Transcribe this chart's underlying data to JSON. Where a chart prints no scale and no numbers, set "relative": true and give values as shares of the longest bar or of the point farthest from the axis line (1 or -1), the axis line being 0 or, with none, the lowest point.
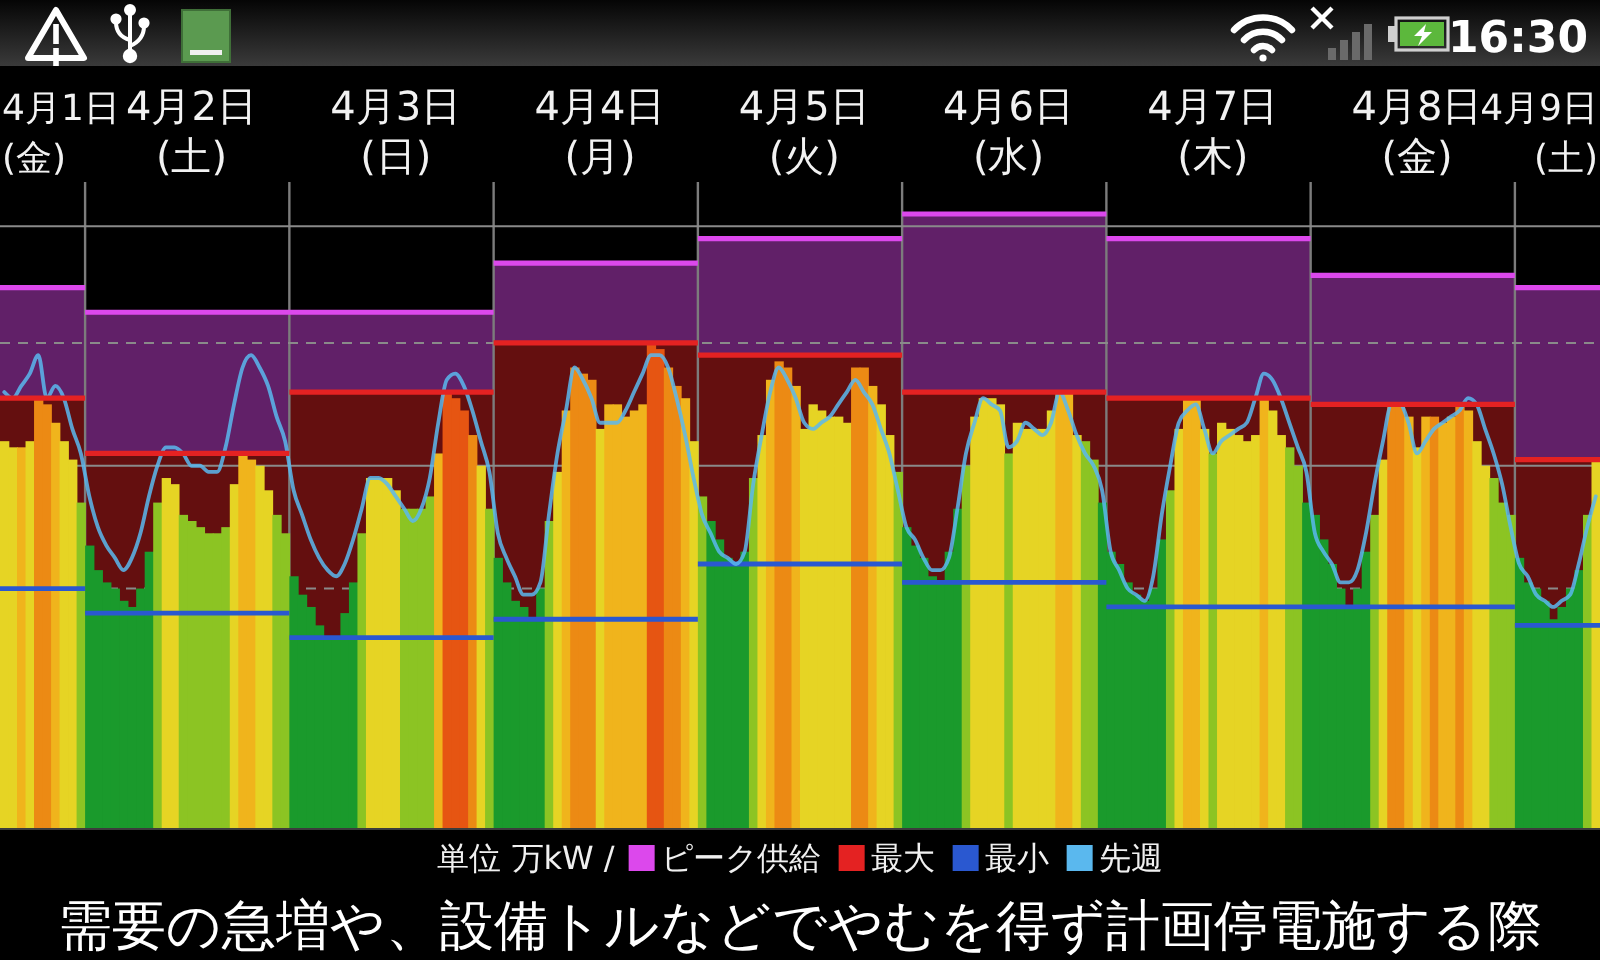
{
  "chart_data": {
    "type": "bar",
    "relative": true,
    "categories": [
      null,
      null,
      null,
      null,
      null,
      null,
      null,
      null,
      null,
      null,
      null,
      null,
      null,
      null,
      null,
      null,
      null,
      null,
      null,
      null,
      null,
      null,
      "4月2日\n(土)",
      null,
      null,
      null,
      null,
      null,
      null,
      null,
      null,
      null,
      null,
      null,
      null,
      null,
      null,
      null,
      null,
      null,
      null,
      null,
      null,
      null,
      null,
      null,
      "4月3日\n(日)",
      null,
      null,
      null,
      null,
      null,
      null,
      null,
      null,
      null,
      null,
      null,
      null,
      null,
      null,
      null,
      null,
      null,
      null,
      null,
      null,
      null,
      null,
      null,
      "4月4日\n(月)",
      null,
      null,
      null,
      null,
      null,
      null,
      null,
      null,
      null,
      null,
      null,
      null,
      null,
      null,
      null,
      null,
      null,
      null,
      null,
      null,
      null,
      null,
      null,
      "4月5日\n(火)",
      null,
      null,
      null,
      null,
      null,
      null,
      null,
      null,
      null,
      null,
      null,
      null,
      null,
      null,
      null,
      null,
      null,
      null,
      null,
      null,
      null,
      null,
      null,
      "4月6日\n(水)",
      null,
      null,
      null,
      null,
      null,
      null,
      null,
      null,
      null,
      null,
      null,
      null,
      null,
      null,
      null,
      null,
      null,
      null,
      null,
      null,
      null,
      null,
      null,
      "4月7日\n(木)",
      null,
      null,
      null,
      null,
      null,
      null,
      null,
      null,
      null,
      null,
      null,
      null,
      null,
      null,
      null,
      null,
      null,
      null,
      null,
      null,
      null,
      null,
      null,
      "4月8日\n(金)",
      null,
      null,
      null,
      null,
      null,
      null,
      null,
      null,
      null,
      null,
      null,
      null,
      null,
      null,
      null,
      null,
      null,
      null,
      null,
      null,
      null
    ],
    "legend": "bottom",
    "ref_lines": [
      {
        "axis": "y",
        "value": 0.39,
        "color": "#8a8a8a",
        "line_style": "dashed"
      },
      {
        "axis": "y",
        "value": 0.59,
        "color": "#8a8a8a"
      },
      {
        "axis": "y",
        "value": 0.79,
        "color": "#8a8a8a",
        "line_style": "dashed"
      },
      {
        "axis": "y",
        "value": 0.98,
        "color": "#8a8a8a"
      }
    ],
    "series": [
      {
        "name": "ピーク供給",
        "type": "area",
        "color": "#dc48ec",
        "values": [
          0.88,
          0.88,
          0.88,
          0.88,
          0.88,
          0.88,
          0.88,
          0.88,
          0.88,
          0.88,
          0.84,
          0.84,
          0.84,
          0.84,
          0.84,
          0.84,
          0.84,
          0.84,
          0.84,
          0.84,
          0.84,
          0.84,
          0.84,
          0.84,
          0.84,
          0.84,
          0.84,
          0.84,
          0.84,
          0.84,
          0.84,
          0.84,
          0.84,
          0.84,
          0.84,
          0.84,
          0.84,
          0.84,
          0.84,
          0.84,
          0.84,
          0.84,
          0.84,
          0.84,
          0.84,
          0.84,
          0.84,
          0.84,
          0.84,
          0.84,
          0.84,
          0.84,
          0.84,
          0.84,
          0.84,
          0.84,
          0.84,
          0.84,
          0.92,
          0.92,
          0.92,
          0.92,
          0.92,
          0.92,
          0.92,
          0.92,
          0.92,
          0.92,
          0.92,
          0.92,
          0.92,
          0.92,
          0.92,
          0.92,
          0.92,
          0.92,
          0.92,
          0.92,
          0.92,
          0.92,
          0.92,
          0.92,
          0.96,
          0.96,
          0.96,
          0.96,
          0.96,
          0.96,
          0.96,
          0.96,
          0.96,
          0.96,
          0.96,
          0.96,
          0.96,
          0.96,
          0.96,
          0.96,
          0.96,
          0.96,
          0.96,
          0.96,
          0.96,
          0.96,
          0.96,
          0.96,
          1,
          1,
          1,
          1,
          1,
          1,
          1,
          1,
          1,
          1,
          1,
          1,
          1,
          1,
          1,
          1,
          1,
          1,
          1,
          1,
          1,
          1,
          1,
          1,
          0.96,
          0.96,
          0.96,
          0.96,
          0.96,
          0.96,
          0.96,
          0.96,
          0.96,
          0.96,
          0.96,
          0.96,
          0.96,
          0.96,
          0.96,
          0.96,
          0.96,
          0.96,
          0.96,
          0.96,
          0.96,
          0.96,
          0.96,
          0.96,
          0.9,
          0.9,
          0.9,
          0.9,
          0.9,
          0.9,
          0.9,
          0.9,
          0.9,
          0.9,
          0.9,
          0.9,
          0.9,
          0.9,
          0.9,
          0.9,
          0.9,
          0.9,
          0.9,
          0.9,
          0.9,
          0.9,
          0.9,
          0.9,
          0.88,
          0.88,
          0.88,
          0.88,
          0.88,
          0.88,
          0.88,
          0.88,
          0.88,
          0.88
        ]
      },
      {
        "name": "最大",
        "type": "area",
        "color": "#e42222",
        "values": [
          0.7,
          0.7,
          0.7,
          0.7,
          0.7,
          0.7,
          0.7,
          0.7,
          0.7,
          0.7,
          0.61,
          0.61,
          0.61,
          0.61,
          0.61,
          0.61,
          0.61,
          0.61,
          0.61,
          0.61,
          0.61,
          0.61,
          0.61,
          0.61,
          0.61,
          0.61,
          0.61,
          0.61,
          0.61,
          0.61,
          0.61,
          0.61,
          0.61,
          0.61,
          0.71,
          0.71,
          0.71,
          0.71,
          0.71,
          0.71,
          0.71,
          0.71,
          0.71,
          0.71,
          0.71,
          0.71,
          0.71,
          0.71,
          0.71,
          0.71,
          0.71,
          0.71,
          0.71,
          0.71,
          0.71,
          0.71,
          0.71,
          0.71,
          0.79,
          0.79,
          0.79,
          0.79,
          0.79,
          0.79,
          0.79,
          0.79,
          0.79,
          0.79,
          0.79,
          0.79,
          0.79,
          0.79,
          0.79,
          0.79,
          0.79,
          0.79,
          0.79,
          0.79,
          0.79,
          0.79,
          0.79,
          0.79,
          0.77,
          0.77,
          0.77,
          0.77,
          0.77,
          0.77,
          0.77,
          0.77,
          0.77,
          0.77,
          0.77,
          0.77,
          0.77,
          0.77,
          0.77,
          0.77,
          0.77,
          0.77,
          0.77,
          0.77,
          0.77,
          0.77,
          0.77,
          0.77,
          0.71,
          0.71,
          0.71,
          0.71,
          0.71,
          0.71,
          0.71,
          0.71,
          0.71,
          0.71,
          0.71,
          0.71,
          0.71,
          0.71,
          0.71,
          0.71,
          0.71,
          0.71,
          0.71,
          0.71,
          0.71,
          0.71,
          0.71,
          0.71,
          0.7,
          0.7,
          0.7,
          0.7,
          0.7,
          0.7,
          0.7,
          0.7,
          0.7,
          0.7,
          0.7,
          0.7,
          0.7,
          0.7,
          0.7,
          0.7,
          0.7,
          0.7,
          0.7,
          0.7,
          0.7,
          0.7,
          0.7,
          0.7,
          0.69,
          0.69,
          0.69,
          0.69,
          0.69,
          0.69,
          0.69,
          0.69,
          0.69,
          0.69,
          0.69,
          0.69,
          0.69,
          0.69,
          0.69,
          0.69,
          0.69,
          0.69,
          0.69,
          0.69,
          0.69,
          0.69,
          0.69,
          0.69,
          0.6,
          0.6,
          0.6,
          0.6,
          0.6,
          0.6,
          0.6,
          0.6,
          0.6,
          0.6
        ]
      },
      {
        "values": [
          0.63,
          0.62,
          0.62,
          0.63,
          0.7,
          0.69,
          0.66,
          0.63,
          0.6,
          0.53,
          0.46,
          0.42,
          0.4,
          0.39,
          0.37,
          0.36,
          0.39,
          0.45,
          0.53,
          0.57,
          0.56,
          0.51,
          0.5,
          0.49,
          0.48,
          0.48,
          0.49,
          0.56,
          0.61,
          0.6,
          0.59,
          0.55,
          0.51,
          0.48,
          0.41,
          0.38,
          0.36,
          0.33,
          0.31,
          0.31,
          0.35,
          0.4,
          0.48,
          0.57,
          0.57,
          0.57,
          0.55,
          0.52,
          0.52,
          0.52,
          0.54,
          0.61,
          0.71,
          0.7,
          0.68,
          0.64,
          0.59,
          0.52,
          0.44,
          0.4,
          0.37,
          0.36,
          0.34,
          0.39,
          0.5,
          0.58,
          0.68,
          0.75,
          0.74,
          0.73,
          0.65,
          0.69,
          0.69,
          0.67,
          0.68,
          0.69,
          0.79,
          0.78,
          0.75,
          0.72,
          0.7,
          0.63,
          0.54,
          0.5,
          0.47,
          0.44,
          0.43,
          0.45,
          0.57,
          0.64,
          0.73,
          0.76,
          0.75,
          0.72,
          0.65,
          0.69,
          0.68,
          0.67,
          0.67,
          0.66,
          0.75,
          0.75,
          0.72,
          0.69,
          0.64,
          0.58,
          0.49,
          0.46,
          0.44,
          0.41,
          0.4,
          0.45,
          0.52,
          0.59,
          0.67,
          0.7,
          0.7,
          0.69,
          0.61,
          0.66,
          0.65,
          0.65,
          0.65,
          0.68,
          0.71,
          0.71,
          0.64,
          0.63,
          0.6,
          0.53,
          0.45,
          0.43,
          0.4,
          0.38,
          0.37,
          0.39,
          0.47,
          0.55,
          0.65,
          0.7,
          0.7,
          0.65,
          0.61,
          0.66,
          0.65,
          0.64,
          0.63,
          0.64,
          0.7,
          0.68,
          0.64,
          0.62,
          0.59,
          0.53,
          0.51,
          0.47,
          0.43,
          0.39,
          0.36,
          0.39,
          0.45,
          0.51,
          0.6,
          0.69,
          0.69,
          0.67,
          0.62,
          0.67,
          0.67,
          0.66,
          0.67,
          0.69,
          0.68,
          0.63,
          0.59,
          0.57,
          0.53,
          0.51,
          0.44,
          0.4,
          0.39,
          0.37,
          0.34,
          0.36,
          0.39,
          0.42,
          0.51,
          0.6
        ],
        "colors": [
          "#e6d424",
          "#e6d424",
          "#f0b41c",
          "#e6d424",
          "#ec8a14",
          "#ec8a14",
          "#f0b41c",
          "#e6d424",
          "#e6d424",
          "#8cc423",
          "#1a9a2c",
          "#1a9a2c",
          "#1a9a2c",
          "#1a9a2c",
          "#1a9a2c",
          "#1a9a2c",
          "#1a9a2c",
          "#1a9a2c",
          "#8cc423",
          "#e6d424",
          "#e6d424",
          "#8cc423",
          "#8cc423",
          "#8cc423",
          "#8cc423",
          "#8cc423",
          "#8cc423",
          "#e6d424",
          "#f0b41c",
          "#f0b41c",
          "#e6d424",
          "#e6d424",
          "#8cc423",
          "#8cc423",
          "#1a9a2c",
          "#1a9a2c",
          "#1a9a2c",
          "#1a9a2c",
          "#1a9a2c",
          "#1a9a2c",
          "#1a9a2c",
          "#1a9a2c",
          "#8cc423",
          "#e6d424",
          "#e6d424",
          "#e6d424",
          "#e6d424",
          "#8cc423",
          "#8cc423",
          "#8cc423",
          "#8cc423",
          "#f0b41c",
          "#e65512",
          "#e65512",
          "#e65512",
          "#ec8a14",
          "#e6d424",
          "#8cc423",
          "#1a9a2c",
          "#1a9a2c",
          "#1a9a2c",
          "#1a9a2c",
          "#1a9a2c",
          "#1a9a2c",
          "#8cc423",
          "#e6d424",
          "#f0b41c",
          "#ec8a14",
          "#ec8a14",
          "#ec8a14",
          "#e6d424",
          "#f0b41c",
          "#f0b41c",
          "#f0b41c",
          "#f0b41c",
          "#f0b41c",
          "#e65512",
          "#e65512",
          "#ec8a14",
          "#ec8a14",
          "#f0b41c",
          "#e6d424",
          "#8cc423",
          "#1a9a2c",
          "#1a9a2c",
          "#1a9a2c",
          "#1a9a2c",
          "#1a9a2c",
          "#8cc423",
          "#e6d424",
          "#f0b41c",
          "#ec8a14",
          "#ec8a14",
          "#f0b41c",
          "#e6d424",
          "#e6d424",
          "#e6d424",
          "#e6d424",
          "#e6d424",
          "#e6d424",
          "#ec8a14",
          "#ec8a14",
          "#f0b41c",
          "#e6d424",
          "#e6d424",
          "#8cc423",
          "#1a9a2c",
          "#1a9a2c",
          "#1a9a2c",
          "#1a9a2c",
          "#1a9a2c",
          "#1a9a2c",
          "#1a9a2c",
          "#8cc423",
          "#e6d424",
          "#e6d424",
          "#e6d424",
          "#e6d424",
          "#8cc423",
          "#e6d424",
          "#e6d424",
          "#e6d424",
          "#e6d424",
          "#e6d424",
          "#f0b41c",
          "#f0b41c",
          "#e6d424",
          "#8cc423",
          "#8cc423",
          "#1a9a2c",
          "#1a9a2c",
          "#1a9a2c",
          "#1a9a2c",
          "#1a9a2c",
          "#1a9a2c",
          "#1a9a2c",
          "#1a9a2c",
          "#8cc423",
          "#e6d424",
          "#f0b41c",
          "#f0b41c",
          "#e6d424",
          "#8cc423",
          "#e6d424",
          "#e6d424",
          "#e6d424",
          "#e6d424",
          "#e6d424",
          "#f0b41c",
          "#e6d424",
          "#e6d424",
          "#8cc423",
          "#8cc423",
          "#1a9a2c",
          "#1a9a2c",
          "#1a9a2c",
          "#1a9a2c",
          "#1a9a2c",
          "#1a9a2c",
          "#1a9a2c",
          "#1a9a2c",
          "#8cc423",
          "#e6d424",
          "#ec8a14",
          "#ec8a14",
          "#f0b41c",
          "#e6d424",
          "#f0b41c",
          "#ec8a14",
          "#f0b41c",
          "#f0b41c",
          "#ec8a14",
          "#f0b41c",
          "#e6d424",
          "#e6d424",
          "#8cc423",
          "#8cc423",
          "#8cc423",
          "#1a9a2c",
          "#1a9a2c",
          "#1a9a2c",
          "#1a9a2c",
          "#1a9a2c",
          "#1a9a2c",
          "#1a9a2c",
          "#1a9a2c",
          "#8cc423",
          "#e6d424"
        ]
      },
      {
        "name": "最小",
        "type": "step",
        "color": "#2a58d0",
        "values": [
          0.39,
          0.39,
          0.39,
          0.39,
          0.39,
          0.39,
          0.39,
          0.39,
          0.39,
          0.39,
          0.35,
          0.35,
          0.35,
          0.35,
          0.35,
          0.35,
          0.35,
          0.35,
          0.35,
          0.35,
          0.35,
          0.35,
          0.35,
          0.35,
          0.35,
          0.35,
          0.35,
          0.35,
          0.35,
          0.35,
          0.35,
          0.35,
          0.35,
          0.35,
          0.31,
          0.31,
          0.31,
          0.31,
          0.31,
          0.31,
          0.31,
          0.31,
          0.31,
          0.31,
          0.31,
          0.31,
          0.31,
          0.31,
          0.31,
          0.31,
          0.31,
          0.31,
          0.31,
          0.31,
          0.31,
          0.31,
          0.31,
          0.31,
          0.34,
          0.34,
          0.34,
          0.34,
          0.34,
          0.34,
          0.34,
          0.34,
          0.34,
          0.34,
          0.34,
          0.34,
          0.34,
          0.34,
          0.34,
          0.34,
          0.34,
          0.34,
          0.34,
          0.34,
          0.34,
          0.34,
          0.34,
          0.34,
          0.43,
          0.43,
          0.43,
          0.43,
          0.43,
          0.43,
          0.43,
          0.43,
          0.43,
          0.43,
          0.43,
          0.43,
          0.43,
          0.43,
          0.43,
          0.43,
          0.43,
          0.43,
          0.43,
          0.43,
          0.43,
          0.43,
          0.43,
          0.43,
          0.4,
          0.4,
          0.4,
          0.4,
          0.4,
          0.4,
          0.4,
          0.4,
          0.4,
          0.4,
          0.4,
          0.4,
          0.4,
          0.4,
          0.4,
          0.4,
          0.4,
          0.4,
          0.4,
          0.4,
          0.4,
          0.4,
          0.4,
          0.4,
          0.36,
          0.36,
          0.36,
          0.36,
          0.36,
          0.36,
          0.36,
          0.36,
          0.36,
          0.36,
          0.36,
          0.36,
          0.36,
          0.36,
          0.36,
          0.36,
          0.36,
          0.36,
          0.36,
          0.36,
          0.36,
          0.36,
          0.36,
          0.36,
          0.36,
          0.36,
          0.36,
          0.36,
          0.36,
          0.36,
          0.36,
          0.36,
          0.36,
          0.36,
          0.36,
          0.36,
          0.36,
          0.36,
          0.36,
          0.36,
          0.36,
          0.36,
          0.36,
          0.36,
          0.36,
          0.36,
          0.36,
          0.36,
          0.33,
          0.33,
          0.33,
          0.33,
          0.33,
          0.33,
          0.33,
          0.33,
          0.33,
          0.33
        ]
      },
      {
        "name": "先週",
        "type": "line",
        "color": "#5ab8ee",
        "values": [
          0.71,
          0.7,
          0.72,
          0.74,
          0.77,
          0.7,
          0.72,
          0.7,
          0.65,
          0.61,
          0.54,
          0.49,
          0.46,
          0.44,
          0.42,
          0.44,
          0.48,
          0.54,
          0.59,
          0.62,
          0.62,
          0.61,
          0.59,
          0.59,
          0.58,
          0.58,
          0.62,
          0.69,
          0.75,
          0.77,
          0.75,
          0.72,
          0.67,
          0.63,
          0.55,
          0.51,
          0.47,
          0.44,
          0.42,
          0.41,
          0.43,
          0.47,
          0.52,
          0.57,
          0.57,
          0.56,
          0.54,
          0.52,
          0.5,
          0.52,
          0.57,
          0.66,
          0.73,
          0.74,
          0.72,
          0.68,
          0.63,
          0.58,
          0.48,
          0.44,
          0.41,
          0.38,
          0.38,
          0.4,
          0.51,
          0.61,
          0.68,
          0.75,
          0.73,
          0.7,
          0.66,
          0.66,
          0.66,
          0.68,
          0.71,
          0.74,
          0.77,
          0.77,
          0.75,
          0.7,
          0.64,
          0.57,
          0.51,
          0.48,
          0.45,
          0.44,
          0.43,
          0.45,
          0.56,
          0.64,
          0.71,
          0.75,
          0.73,
          0.7,
          0.66,
          0.65,
          0.66,
          0.67,
          0.69,
          0.71,
          0.73,
          0.71,
          0.69,
          0.65,
          0.61,
          0.55,
          0.49,
          0.47,
          0.44,
          0.42,
          0.42,
          0.44,
          0.52,
          0.61,
          0.66,
          0.7,
          0.69,
          0.68,
          0.62,
          0.63,
          0.66,
          0.65,
          0.64,
          0.66,
          0.71,
          0.68,
          0.64,
          0.61,
          0.59,
          0.55,
          0.45,
          0.42,
          0.39,
          0.38,
          0.37,
          0.41,
          0.51,
          0.59,
          0.66,
          0.68,
          0.69,
          0.65,
          0.61,
          0.63,
          0.64,
          0.65,
          0.66,
          0.7,
          0.74,
          0.73,
          0.7,
          0.66,
          0.62,
          0.58,
          0.48,
          0.45,
          0.43,
          0.4,
          0.4,
          0.42,
          0.48,
          0.56,
          0.63,
          0.69,
          0.69,
          0.66,
          0.61,
          0.63,
          0.65,
          0.66,
          0.67,
          0.68,
          0.7,
          0.69,
          0.65,
          0.61,
          0.56,
          0.49,
          0.43,
          0.41,
          0.38,
          0.37,
          0.36,
          0.37,
          0.38,
          0.43,
          0.49,
          0.54
        ]
      }
    ],
    "annotations": [
      "4月1日\n(金)",
      "4月9日\n(土)",
      "単位 万kW /",
      "需要の急増や、設備トルなどでやむを得ず計画停電施する際",
      "16:30"
    ]
  }
}
